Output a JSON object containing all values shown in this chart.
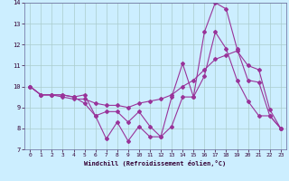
{
  "xlabel": "Windchill (Refroidissement éolien,°C)",
  "background_color": "#cceeff",
  "grid_color": "#aacccc",
  "line_color": "#993399",
  "xlim": [
    -0.5,
    23.5
  ],
  "ylim": [
    7,
    14
  ],
  "xticks": [
    0,
    1,
    2,
    3,
    4,
    5,
    6,
    7,
    8,
    9,
    10,
    11,
    12,
    13,
    14,
    15,
    16,
    17,
    18,
    19,
    20,
    21,
    22,
    23
  ],
  "yticks": [
    7,
    8,
    9,
    10,
    11,
    12,
    13,
    14
  ],
  "hours": [
    0,
    1,
    2,
    3,
    4,
    5,
    6,
    7,
    8,
    9,
    10,
    11,
    12,
    13,
    14,
    15,
    16,
    17,
    18,
    19,
    20,
    21,
    22,
    23
  ],
  "line_max": [
    10.0,
    9.6,
    9.6,
    9.6,
    9.5,
    9.6,
    8.6,
    8.8,
    8.8,
    8.3,
    8.8,
    8.1,
    7.6,
    9.5,
    11.1,
    9.5,
    12.6,
    14.0,
    13.7,
    11.8,
    10.3,
    10.2,
    8.6,
    8.0
  ],
  "line_min": [
    10.0,
    9.6,
    9.6,
    9.6,
    9.5,
    9.2,
    8.6,
    7.5,
    8.3,
    7.4,
    8.1,
    7.6,
    7.6,
    8.1,
    9.5,
    9.5,
    10.5,
    12.6,
    11.8,
    10.3,
    9.3,
    8.6,
    8.6,
    8.0
  ],
  "line_avg": [
    10.0,
    9.6,
    9.6,
    9.5,
    9.4,
    9.4,
    9.2,
    9.1,
    9.1,
    9.0,
    9.2,
    9.3,
    9.4,
    9.6,
    10.0,
    10.3,
    10.8,
    11.3,
    11.5,
    11.7,
    11.0,
    10.8,
    8.9,
    8.0
  ]
}
